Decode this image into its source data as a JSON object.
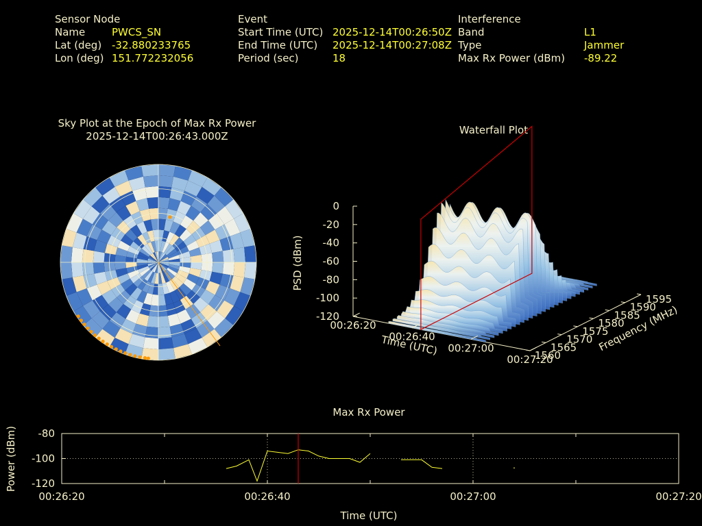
{
  "header": {
    "sensor": {
      "heading": "Sensor Node",
      "rows": [
        {
          "label": "Name",
          "value": "PWCS_SN"
        },
        {
          "label": "Lat (deg)",
          "value": "-32.880233765"
        },
        {
          "label": "Lon (deg)",
          "value": "151.772232056"
        }
      ]
    },
    "event": {
      "heading": "Event",
      "rows": [
        {
          "label": "Start Time (UTC)",
          "value": "2025-12-14T00:26:50Z"
        },
        {
          "label": "End Time (UTC)",
          "value": "2025-12-14T00:27:08Z"
        },
        {
          "label": "Period (sec)",
          "value": "18"
        }
      ]
    },
    "interference": {
      "heading": "Interference",
      "rows": [
        {
          "label": "Band",
          "value": "L1"
        },
        {
          "label": "Type",
          "value": "Jammer"
        },
        {
          "label": "Max Rx Power (dBm)",
          "value": "-89.22"
        }
      ]
    }
  },
  "colors": {
    "label": "#f5f0c8",
    "value": "#ffff33",
    "marker": "#cc0000",
    "trace": "#ffff33",
    "satellite": "#ff9900",
    "grid": "#f5f0c8"
  },
  "chart_data": [
    {
      "type": "heatmap",
      "title": "Sky Plot at the Epoch of Max Rx Power",
      "subtitle": "2025-12-14T00:26:43.000Z",
      "projection": "polar",
      "rings": 4,
      "spokes": 4
    },
    {
      "type": "area",
      "title": "Waterfall Plot",
      "xlabel": "Time (UTC)",
      "ylabel": "Frequency (MHz)",
      "zlabel": "PSD (dBm)",
      "x_ticks": [
        "00:26:20",
        "00:26:40",
        "00:27:00",
        "00:27:20"
      ],
      "y_ticks": [
        "1560",
        "1565",
        "1570",
        "1575",
        "1580",
        "1585",
        "1590",
        "1595"
      ],
      "z_ticks": [
        "0",
        "-20",
        "-40",
        "-60",
        "-80",
        "-100",
        "-120"
      ],
      "zlim": [
        -120,
        0
      ],
      "marker_time": "00:26:43"
    },
    {
      "type": "line",
      "title": "Max Rx Power",
      "xlabel": "Time (UTC)",
      "ylabel": "Power (dBm)",
      "ylim": [
        -120,
        -80
      ],
      "x_ticks": [
        "00:26:20",
        "00:26:40",
        "00:27:00",
        "00:27:20"
      ],
      "y_ticks": [
        "-80",
        "-100",
        "-120"
      ],
      "grid": true,
      "marker_time": "00:26:43",
      "segments": [
        [
          [
            16,
            -108
          ],
          [
            17,
            -106
          ],
          [
            18.2,
            -101
          ],
          [
            19,
            -118
          ],
          [
            20,
            -94
          ],
          [
            21,
            -95
          ],
          [
            22,
            -96
          ],
          [
            23,
            -93
          ],
          [
            24,
            -94
          ],
          [
            25,
            -98
          ],
          [
            26,
            -100
          ],
          [
            27,
            -100
          ],
          [
            28,
            -100
          ],
          [
            29,
            -103
          ],
          [
            30,
            -96
          ]
        ],
        [
          [
            33,
            -101
          ],
          [
            34,
            -101
          ],
          [
            35,
            -101
          ],
          [
            36,
            -107
          ],
          [
            37,
            -108
          ]
        ],
        [
          [
            44,
            -107.5
          ]
        ]
      ]
    }
  ]
}
